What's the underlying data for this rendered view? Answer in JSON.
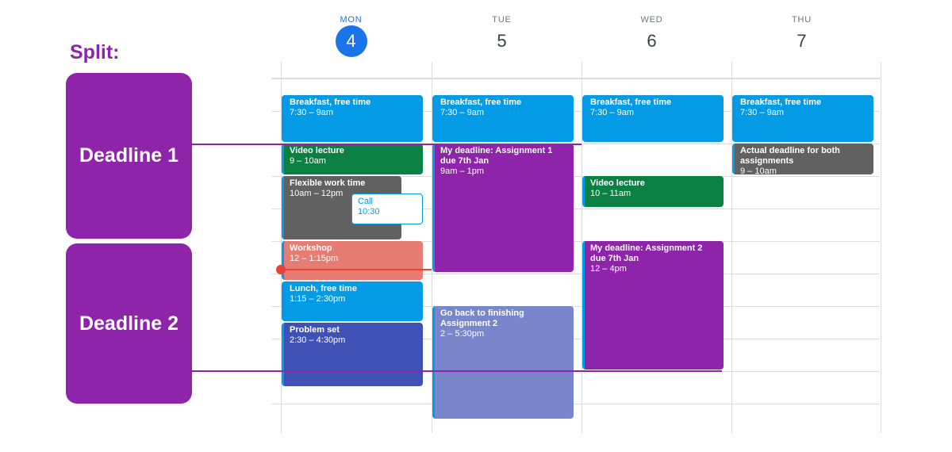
{
  "annotation": {
    "title": "Split:",
    "boxes": [
      "Deadline 1",
      "Deadline 2"
    ],
    "color": "#8e24aa"
  },
  "days": [
    {
      "dow": "MON",
      "num": "4",
      "today": true
    },
    {
      "dow": "TUE",
      "num": "5",
      "today": false
    },
    {
      "dow": "WED",
      "num": "6",
      "today": false
    },
    {
      "dow": "THU",
      "num": "7",
      "today": false
    }
  ],
  "colors": {
    "blue": "#039be5",
    "green": "#0b8043",
    "gray": "#616161",
    "salmon": "#e67c73",
    "indigo": "#3f51b5",
    "purple": "#8e24aa",
    "lavender": "#7986cb",
    "today": "#1a73e8",
    "now": "#ea4335"
  },
  "events": [
    {
      "day": 0,
      "title": "Breakfast, free time",
      "time": "7:30 – 9am",
      "start": 7.5,
      "end": 9,
      "color": "blue"
    },
    {
      "day": 0,
      "title": "Video lecture",
      "time": "9 – 10am",
      "start": 9,
      "end": 10,
      "color": "green"
    },
    {
      "day": 0,
      "title": "Flexible work time",
      "time": "10am – 12pm",
      "start": 10,
      "end": 12,
      "color": "gray",
      "narrow": true
    },
    {
      "day": 0,
      "title": "Call",
      "time": "10:30",
      "start": 10.5,
      "end": 11.5,
      "color": "call"
    },
    {
      "day": 0,
      "title": "Workshop",
      "time": "12 – 1:15pm",
      "start": 12,
      "end": 13.25,
      "color": "salmon"
    },
    {
      "day": 0,
      "title": "Lunch, free time",
      "time": "1:15 – 2:30pm",
      "start": 13.25,
      "end": 14.5,
      "color": "blue"
    },
    {
      "day": 0,
      "title": "Problem set",
      "time": "2:30 – 4:30pm",
      "start": 14.5,
      "end": 16.5,
      "color": "indigo"
    },
    {
      "day": 1,
      "title": "Breakfast, free time",
      "time": "7:30 – 9am",
      "start": 7.5,
      "end": 9,
      "color": "blue"
    },
    {
      "day": 1,
      "title": "My deadline: Assignment 1 due 7th Jan",
      "time": "9am – 1pm",
      "start": 9,
      "end": 13,
      "color": "purple"
    },
    {
      "day": 1,
      "title": "Go back to finishing Assignment 2",
      "time": "2 – 5:30pm",
      "start": 14,
      "end": 17.5,
      "color": "lavender"
    },
    {
      "day": 2,
      "title": "Breakfast, free time",
      "time": "7:30 – 9am",
      "start": 7.5,
      "end": 9,
      "color": "blue"
    },
    {
      "day": 2,
      "title": "Video lecture",
      "time": "10 – 11am",
      "start": 10,
      "end": 11,
      "color": "green"
    },
    {
      "day": 2,
      "title": "My deadline: Assignment 2 due 7th Jan",
      "time": "12 – 4pm",
      "start": 12,
      "end": 16,
      "color": "purple"
    },
    {
      "day": 3,
      "title": "Breakfast, free time",
      "time": "7:30 – 9am",
      "start": 7.5,
      "end": 9,
      "color": "blue"
    },
    {
      "day": 3,
      "title": "Actual deadline for both assignments",
      "time": "9 – 10am",
      "start": 9,
      "end": 10,
      "color": "gray"
    }
  ],
  "current_time": 12.85
}
